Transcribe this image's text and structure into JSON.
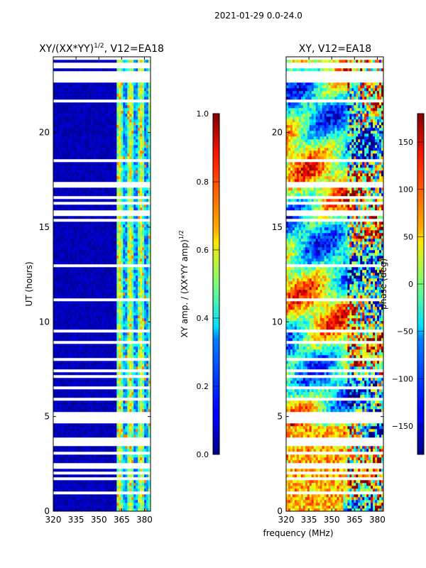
{
  "figure": {
    "suptitle": "2021-01-29 0.0-24.0",
    "xlabel": "frequency (MHz)"
  },
  "chart_data": [
    {
      "type": "heatmap",
      "title_text": "XY/(XX*YY)",
      "title_exponent": "1/2",
      "title_suffix": ", V12=EA18",
      "ylabel": "UT (hours)",
      "x_ticks": [
        "320",
        "335",
        "350",
        "365",
        "380"
      ],
      "x_tick_values": [
        320,
        335,
        350,
        365,
        380
      ],
      "xlim": [
        320,
        384
      ],
      "y_ticks": [
        "0",
        "5",
        "10",
        "15",
        "20"
      ],
      "y_tick_values": [
        0,
        5,
        10,
        15,
        20
      ],
      "ylim": [
        0,
        24
      ],
      "colorbar": {
        "label_text": "XY amp. / (XX*YY amp)",
        "label_exponent": "1/2",
        "ticks": [
          "0.0",
          "0.2",
          "0.4",
          "0.6",
          "0.8",
          "1.0"
        ],
        "tick_values": [
          0.0,
          0.2,
          0.4,
          0.6,
          0.8,
          1.0
        ],
        "range": [
          0.0,
          1.0
        ]
      },
      "colormap": "jet",
      "flagged_color": "#ffffff"
    },
    {
      "type": "heatmap",
      "title_text": "XY, V12=EA18",
      "x_ticks": [
        "320",
        "335",
        "350",
        "365",
        "380"
      ],
      "x_tick_values": [
        320,
        335,
        350,
        365,
        380
      ],
      "xlim": [
        320,
        384
      ],
      "y_ticks": [
        "0",
        "5",
        "10",
        "15",
        "20"
      ],
      "y_tick_values": [
        0,
        5,
        10,
        15,
        20
      ],
      "ylim": [
        0,
        24
      ],
      "colorbar": {
        "label_text": "phase (deg)",
        "ticks": [
          "−150",
          "−100",
          "−50",
          "0",
          "50",
          "100",
          "150"
        ],
        "tick_values": [
          -150,
          -100,
          -50,
          0,
          50,
          100,
          150
        ],
        "range": [
          -180,
          180
        ]
      },
      "colormap": "jet",
      "flagged_color": "#ffffff"
    }
  ]
}
